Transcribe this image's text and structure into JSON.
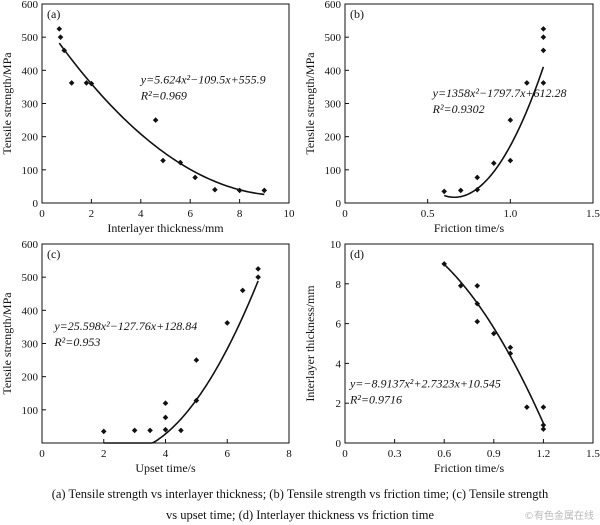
{
  "chart_data": [
    {
      "type": "scatter",
      "panel_label": "(a)",
      "xlabel": "Interlayer thickness/mm",
      "ylabel": "Tensile strength/MPa",
      "xlim": [
        0,
        10
      ],
      "ylim": [
        0,
        600
      ],
      "xticks": [
        0,
        2,
        4,
        6,
        8,
        10
      ],
      "yticks": [
        0,
        100,
        200,
        300,
        400,
        500,
        600
      ],
      "xtick_labels": [
        "0",
        "2",
        "4",
        "6",
        "8",
        "10"
      ],
      "ytick_labels": [
        "0",
        "100",
        "200",
        "300",
        "400",
        "500",
        "600"
      ],
      "points": [
        [
          0.7,
          525
        ],
        [
          0.75,
          500
        ],
        [
          0.9,
          460
        ],
        [
          1.2,
          362
        ],
        [
          1.8,
          362
        ],
        [
          2.0,
          360
        ],
        [
          4.6,
          250
        ],
        [
          4.9,
          128
        ],
        [
          5.6,
          122
        ],
        [
          6.2,
          77
        ],
        [
          7.0,
          40
        ],
        [
          8.0,
          38
        ],
        [
          9.0,
          38
        ]
      ],
      "fit": {
        "type": "poly2",
        "coef": [
          5.624,
          -109.5,
          555.9
        ],
        "x_range": [
          0.7,
          9.0
        ]
      },
      "equation": "y=5.624x²−109.5x+555.9",
      "r2": "R²=0.969",
      "annotation_pos": [
        4.0,
        360
      ]
    },
    {
      "type": "scatter",
      "panel_label": "(b)",
      "xlabel": "Friction time/s",
      "ylabel": "Tensile strength/MPa",
      "xlim": [
        0,
        1.5
      ],
      "ylim": [
        0,
        600
      ],
      "xticks": [
        0,
        0.5,
        1.0,
        1.5
      ],
      "yticks": [
        0,
        100,
        200,
        300,
        400,
        500,
        600
      ],
      "xtick_labels": [
        "0",
        "0.5",
        "1.0",
        "1.5"
      ],
      "ytick_labels": [
        "0",
        "100",
        "200",
        "300",
        "400",
        "500",
        "600"
      ],
      "points": [
        [
          0.6,
          35
        ],
        [
          0.7,
          38
        ],
        [
          0.8,
          40
        ],
        [
          0.8,
          77
        ],
        [
          0.9,
          120
        ],
        [
          1.0,
          128
        ],
        [
          1.0,
          250
        ],
        [
          1.1,
          362
        ],
        [
          1.2,
          362
        ],
        [
          1.2,
          460
        ],
        [
          1.2,
          500
        ],
        [
          1.2,
          525
        ]
      ],
      "fit": {
        "type": "poly2",
        "coef": [
          1358,
          -1797.7,
          612.28
        ],
        "x_range": [
          0.6,
          1.2
        ]
      },
      "equation": "y=1358x²−1797.7x+612.28",
      "r2": "R²=0.9302",
      "annotation_pos": [
        0.53,
        320
      ]
    },
    {
      "type": "scatter",
      "panel_label": "(c)",
      "xlabel": "Upset time/s",
      "ylabel": "Tensile strength/MPa",
      "xlim": [
        0,
        8
      ],
      "ylim": [
        0,
        600
      ],
      "xticks": [
        0,
        2,
        4,
        6,
        8
      ],
      "yticks": [
        100,
        200,
        300,
        400,
        500,
        600
      ],
      "xtick_labels": [
        "0",
        "2",
        "4",
        "6",
        "8"
      ],
      "ytick_labels": [
        "100",
        "200",
        "300",
        "400",
        "500",
        "600"
      ],
      "points": [
        [
          2.0,
          35
        ],
        [
          3.0,
          38
        ],
        [
          3.5,
          38
        ],
        [
          4.0,
          40
        ],
        [
          4.0,
          77
        ],
        [
          4.0,
          120
        ],
        [
          4.5,
          38
        ],
        [
          5.0,
          128
        ],
        [
          5.0,
          250
        ],
        [
          6.0,
          362
        ],
        [
          6.5,
          460
        ],
        [
          7.0,
          500
        ],
        [
          7.0,
          525
        ]
      ],
      "fit": {
        "type": "poly2",
        "coef": [
          25.598,
          -127.76,
          128.84
        ],
        "x_range": [
          2.0,
          7.0
        ]
      },
      "equation": "y=25.598x²−127.76x+128.84",
      "r2": "R²=0.953",
      "annotation_pos": [
        0.4,
        340
      ]
    },
    {
      "type": "scatter",
      "panel_label": "(d)",
      "xlabel": "Friction time/s",
      "ylabel": "Interlayer thickness/mm",
      "xlim": [
        0,
        1.5
      ],
      "ylim": [
        0,
        10
      ],
      "xticks": [
        0,
        0.3,
        0.6,
        0.9,
        1.2,
        1.5
      ],
      "yticks": [
        0,
        2,
        4,
        6,
        8,
        10
      ],
      "xtick_labels": [
        "0",
        "0.3",
        "0.6",
        "0.9",
        "1.2",
        "1.5"
      ],
      "ytick_labels": [
        "0",
        "2",
        "4",
        "6",
        "8",
        "10"
      ],
      "points": [
        [
          0.6,
          9.0
        ],
        [
          0.7,
          7.9
        ],
        [
          0.8,
          7.9
        ],
        [
          0.8,
          7.0
        ],
        [
          0.8,
          6.1
        ],
        [
          0.9,
          5.5
        ],
        [
          1.0,
          4.8
        ],
        [
          1.0,
          4.5
        ],
        [
          1.1,
          1.8
        ],
        [
          1.2,
          1.8
        ],
        [
          1.2,
          0.9
        ],
        [
          1.2,
          0.7
        ]
      ],
      "fit": {
        "type": "poly2",
        "coef": [
          -8.9137,
          2.7323,
          10.545
        ],
        "x_range": [
          0.6,
          1.2
        ]
      },
      "equation": "y=−8.9137x²+2.7323x+10.545",
      "r2": "R²=0.9716",
      "annotation_pos": [
        0.03,
        2.8
      ]
    }
  ],
  "caption": {
    "line1": "(a) Tensile strength vs interlayer thickness; (b) Tensile strength vs friction time; (c) Tensile strength",
    "line2": "vs upset time; (d) Interlayer thickness vs friction time"
  },
  "watermark": "©有色金属在线"
}
